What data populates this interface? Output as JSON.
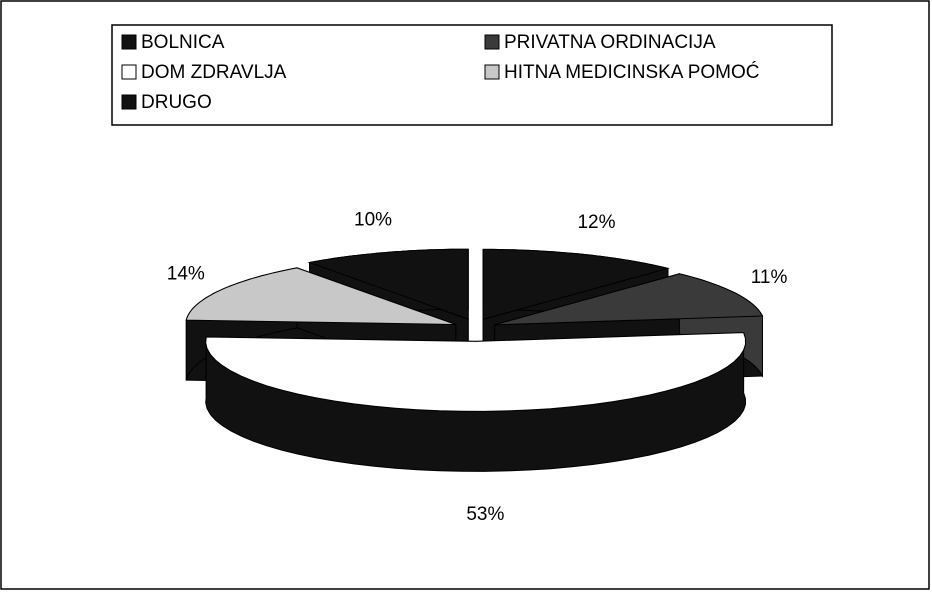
{
  "chart_data": {
    "type": "pie3d",
    "categories": [
      "BOLNICA",
      "PRIVATNA ORDINACIJA",
      "DOM ZDRAVLJA",
      "HITNA MEDICINSKA POMOĆ",
      "DRUGO"
    ],
    "values": [
      12,
      11,
      53,
      14,
      10
    ],
    "value_labels": [
      "12%",
      "11%",
      "53%",
      "14%",
      "10%"
    ],
    "colors": [
      "#111111",
      "#3a3a3a",
      "#ffffff",
      "#c8c8c8",
      "#111111"
    ],
    "legend": "top"
  }
}
